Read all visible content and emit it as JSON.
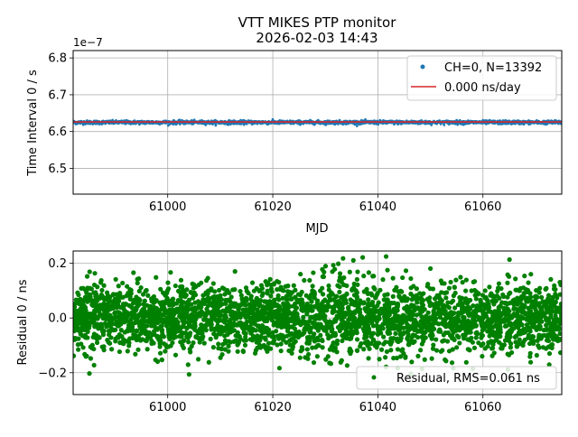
{
  "figure": {
    "title_line1": "VTT MIKES PTP monitor",
    "title_line2": "2026-02-03 14:43"
  },
  "chart_data": [
    {
      "type": "scatter",
      "title": "",
      "xlabel": "MJD",
      "ylabel": "Time Interval 0 / s",
      "y_offset_label": "1e−7",
      "xlim": [
        60982,
        61075
      ],
      "ylim": [
        6.43,
        6.82
      ],
      "y_scale_exponent": -7,
      "xticks": [
        61000,
        61020,
        61040,
        61060
      ],
      "xtick_labels": [
        "61000",
        "61020",
        "61040",
        "61060"
      ],
      "yticks": [
        6.5,
        6.6,
        6.7,
        6.8
      ],
      "ytick_labels": [
        "6.5",
        "6.6",
        "6.7",
        "6.8"
      ],
      "grid": true,
      "legend_position": "top-right",
      "series": [
        {
          "name": "CH=0, N=13392",
          "kind": "points",
          "color": "#1f77b4",
          "x_range": [
            60982,
            61075
          ],
          "y_center": 6.625,
          "y_spread": 0.007,
          "count": 13392
        },
        {
          "name": "0.000 ns/day",
          "kind": "line",
          "color": "#d62728",
          "x": [
            60982,
            61075
          ],
          "y": [
            6.626,
            6.626
          ]
        }
      ]
    },
    {
      "type": "scatter",
      "title": "",
      "xlabel": "",
      "ylabel": "Residual 0 / ns",
      "xlim": [
        60982,
        61075
      ],
      "ylim": [
        -0.28,
        0.245
      ],
      "xticks": [
        61000,
        61020,
        61040,
        61060
      ],
      "xtick_labels": [
        "61000",
        "61020",
        "61040",
        "61060"
      ],
      "yticks": [
        -0.2,
        0.0,
        0.2
      ],
      "ytick_labels": [
        "−0.2",
        "0.0",
        "0.2"
      ],
      "grid": true,
      "legend_position": "bottom-right",
      "series": [
        {
          "name": "Residual, RMS=0.061 ns",
          "kind": "points",
          "color": "#008000",
          "x_range": [
            60982,
            61075
          ],
          "rms": 0.061,
          "y_min": -0.26,
          "y_max": 0.225
        }
      ]
    }
  ]
}
